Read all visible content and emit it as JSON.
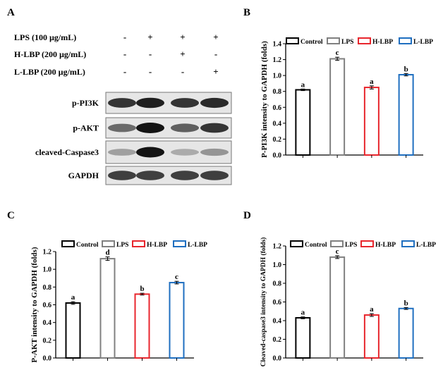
{
  "panel_labels": [
    "A",
    "B",
    "C",
    "D"
  ],
  "western_blot": {
    "treatments": [
      {
        "label": "LPS (100 µg/mL)",
        "signs": [
          "-",
          "+",
          "+",
          "+"
        ]
      },
      {
        "label": "H-LBP (200 µg/mL)",
        "signs": [
          "-",
          "-",
          "+",
          "-"
        ]
      },
      {
        "label": "L-LBP (200 µg/mL)",
        "signs": [
          "-",
          "-",
          "-",
          "+"
        ]
      }
    ],
    "bands": [
      {
        "name": "p-PI3K",
        "intensity": [
          0.85,
          0.95,
          0.85,
          0.9
        ]
      },
      {
        "name": "p-AKT",
        "intensity": [
          0.6,
          1.0,
          0.65,
          0.85
        ]
      },
      {
        "name": "cleaved-Caspase3",
        "intensity": [
          0.35,
          1.0,
          0.3,
          0.4
        ]
      },
      {
        "name": "GAPDH",
        "intensity": [
          0.8,
          0.8,
          0.8,
          0.8
        ]
      }
    ]
  },
  "legend": [
    {
      "name": "Control",
      "color": "#000000"
    },
    {
      "name": "LPS",
      "color": "#808080"
    },
    {
      "name": "H-LBP",
      "color": "#e8262d"
    },
    {
      "name": "L-LBP",
      "color": "#1f6fc0"
    }
  ],
  "chart_data": [
    {
      "panel": "B",
      "type": "bar",
      "categories": [
        "Control",
        "LPS",
        "H-LBP",
        "L-LBP"
      ],
      "values": [
        0.82,
        1.21,
        0.85,
        1.01
      ],
      "errors": [
        0.01,
        0.02,
        0.02,
        0.015
      ],
      "letters": [
        "a",
        "c",
        "a",
        "b"
      ],
      "ylabel": "P-PI3K intensity to GAPDH (folds)",
      "ylim": [
        0,
        1.4
      ],
      "yticks": [
        "0.0",
        "0.2",
        "0.4",
        "0.6",
        "0.8",
        "1.0",
        "1.2",
        "1.4"
      ]
    },
    {
      "panel": "C",
      "type": "bar",
      "categories": [
        "Control",
        "LPS",
        "H-LBP",
        "L-LBP"
      ],
      "values": [
        0.62,
        1.12,
        0.72,
        0.85
      ],
      "errors": [
        0.015,
        0.02,
        0.01,
        0.015
      ],
      "letters": [
        "a",
        "d",
        "b",
        "c"
      ],
      "ylabel": "P-AKT intensity to GAPDH (folds)",
      "ylim": [
        0,
        1.2
      ],
      "yticks": [
        "0.0",
        "0.2",
        "0.4",
        "0.6",
        "0.8",
        "1.0",
        "1.2"
      ]
    },
    {
      "panel": "D",
      "type": "bar",
      "categories": [
        "Control",
        "LPS",
        "H-LBP",
        "L-LBP"
      ],
      "values": [
        0.43,
        1.08,
        0.46,
        0.53
      ],
      "errors": [
        0.01,
        0.015,
        0.015,
        0.01
      ],
      "letters": [
        "a",
        "c",
        "a",
        "b"
      ],
      "ylabel": "Cleaved-caspase3 intensity to GAPDH (folds)",
      "ylim": [
        0,
        1.2
      ],
      "yticks": [
        "0.0",
        "0.2",
        "0.4",
        "0.6",
        "0.8",
        "1.0",
        "1.2"
      ]
    }
  ]
}
